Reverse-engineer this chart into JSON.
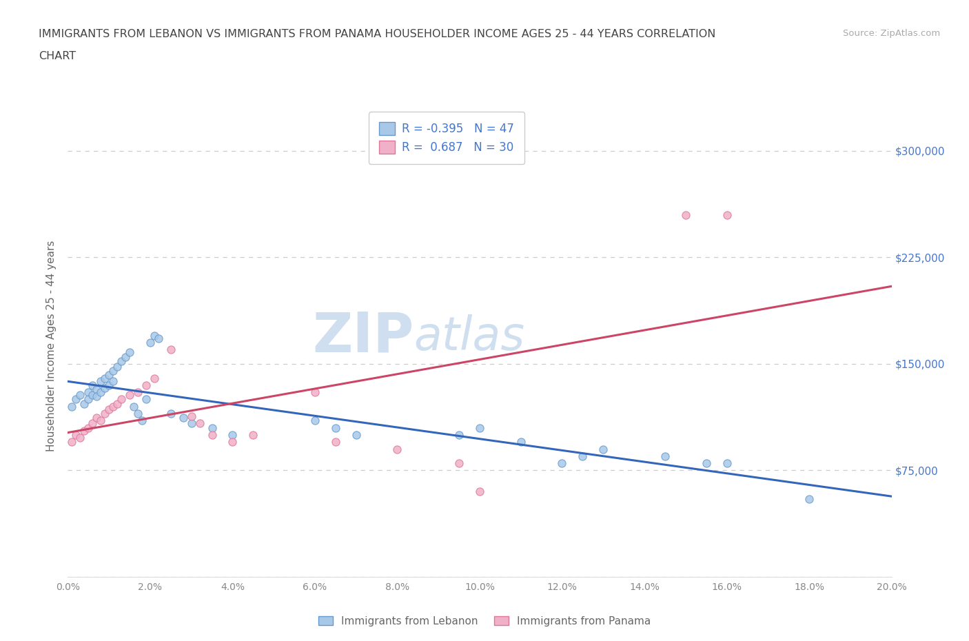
{
  "title_line1": "IMMIGRANTS FROM LEBANON VS IMMIGRANTS FROM PANAMA HOUSEHOLDER INCOME AGES 25 - 44 YEARS CORRELATION",
  "title_line2": "CHART",
  "source": "Source: ZipAtlas.com",
  "ylabel": "Householder Income Ages 25 - 44 years",
  "xlim": [
    0.0,
    0.2
  ],
  "ylim": [
    0,
    325000
  ],
  "yticks": [
    0,
    75000,
    150000,
    225000,
    300000
  ],
  "xticks": [
    0.0,
    0.02,
    0.04,
    0.06,
    0.08,
    0.1,
    0.12,
    0.14,
    0.16,
    0.18,
    0.2
  ],
  "xtick_labels": [
    "0.0%",
    "2.0%",
    "4.0%",
    "6.0%",
    "8.0%",
    "10.0%",
    "12.0%",
    "14.0%",
    "16.0%",
    "18.0%",
    "20.0%"
  ],
  "ytick_labels": [
    "",
    "$75,000",
    "$150,000",
    "$225,000",
    "$300,000"
  ],
  "lebanon_color": "#a8c8e8",
  "lebanon_edge": "#6699cc",
  "panama_color": "#f0b0c8",
  "panama_edge": "#dd7799",
  "trend_lebanon_color": "#3366bb",
  "trend_panama_color": "#cc4466",
  "watermark_color": "#d0dff0",
  "legend_text_color": "#4477cc",
  "background_color": "#ffffff",
  "grid_color": "#cccccc",
  "title_color": "#444444",
  "axis_label_color": "#666666",
  "tick_color": "#888888",
  "right_ytick_color": "#4477cc",
  "lebanon_x": [
    0.001,
    0.002,
    0.003,
    0.004,
    0.005,
    0.005,
    0.006,
    0.006,
    0.007,
    0.007,
    0.008,
    0.008,
    0.009,
    0.009,
    0.01,
    0.01,
    0.011,
    0.011,
    0.012,
    0.013,
    0.014,
    0.015,
    0.016,
    0.017,
    0.018,
    0.019,
    0.02,
    0.021,
    0.022,
    0.025,
    0.028,
    0.03,
    0.035,
    0.04,
    0.06,
    0.065,
    0.07,
    0.095,
    0.1,
    0.11,
    0.12,
    0.125,
    0.13,
    0.145,
    0.155,
    0.16,
    0.18
  ],
  "lebanon_y": [
    120000,
    125000,
    128000,
    122000,
    130000,
    125000,
    135000,
    128000,
    132000,
    127000,
    138000,
    130000,
    140000,
    133000,
    142000,
    135000,
    145000,
    138000,
    148000,
    152000,
    155000,
    158000,
    120000,
    115000,
    110000,
    125000,
    165000,
    170000,
    168000,
    115000,
    112000,
    108000,
    105000,
    100000,
    110000,
    105000,
    100000,
    100000,
    105000,
    95000,
    80000,
    85000,
    90000,
    85000,
    80000,
    80000,
    55000
  ],
  "panama_x": [
    0.001,
    0.002,
    0.003,
    0.004,
    0.005,
    0.006,
    0.007,
    0.008,
    0.009,
    0.01,
    0.011,
    0.012,
    0.013,
    0.015,
    0.017,
    0.019,
    0.021,
    0.025,
    0.03,
    0.032,
    0.035,
    0.04,
    0.045,
    0.06,
    0.065,
    0.08,
    0.095,
    0.1,
    0.15,
    0.16
  ],
  "panama_y": [
    95000,
    100000,
    98000,
    103000,
    105000,
    108000,
    112000,
    110000,
    115000,
    118000,
    120000,
    122000,
    125000,
    128000,
    130000,
    135000,
    140000,
    160000,
    113000,
    108000,
    100000,
    95000,
    100000,
    130000,
    95000,
    90000,
    80000,
    60000,
    255000,
    255000
  ],
  "marker_size": 65
}
